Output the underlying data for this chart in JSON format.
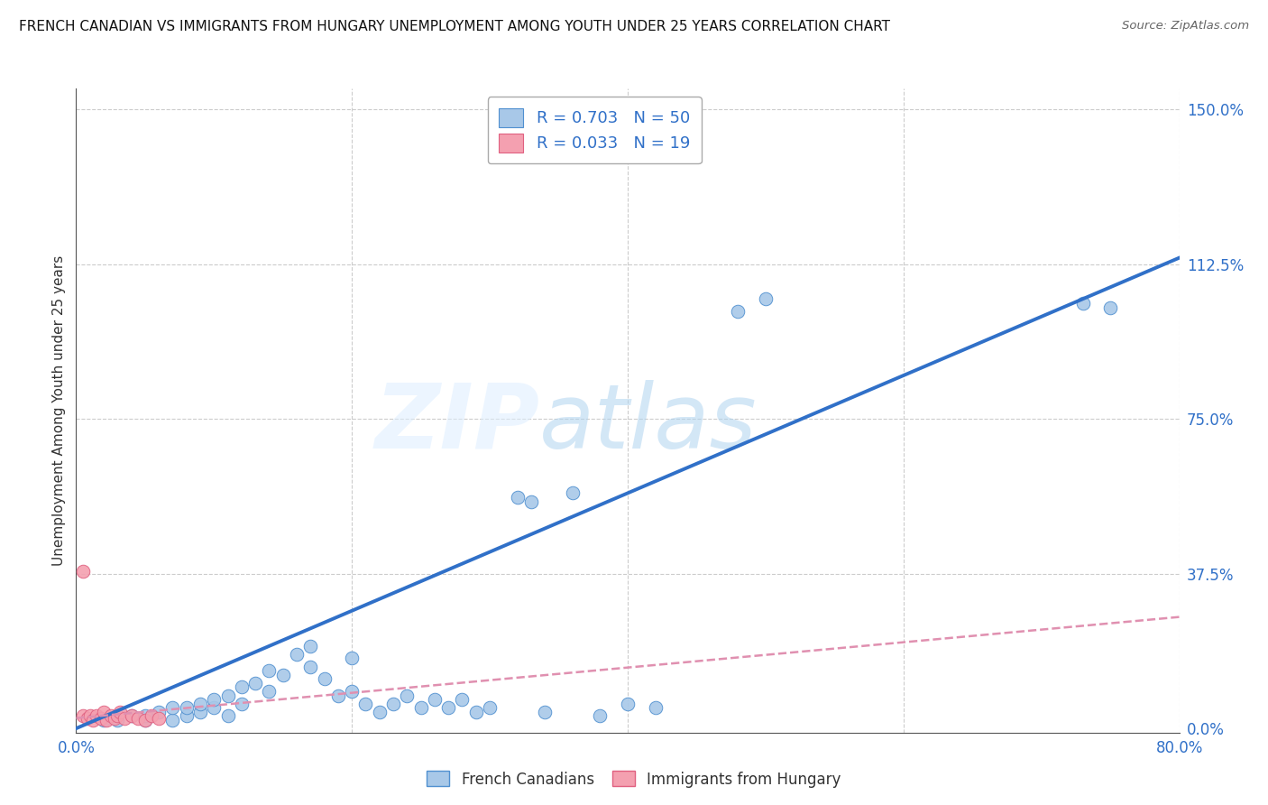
{
  "title": "FRENCH CANADIAN VS IMMIGRANTS FROM HUNGARY UNEMPLOYMENT AMONG YOUTH UNDER 25 YEARS CORRELATION CHART",
  "source": "Source: ZipAtlas.com",
  "ylabel": "Unemployment Among Youth under 25 years",
  "ylabel_ticks": [
    "0.0%",
    "37.5%",
    "75.0%",
    "112.5%",
    "150.0%"
  ],
  "ylabel_tick_vals": [
    0.0,
    0.375,
    0.75,
    1.125,
    1.5
  ],
  "xlabel_tick_vals": [
    0.0,
    0.8
  ],
  "xlabel_ticks": [
    "0.0%",
    "80.0%"
  ],
  "xmin": 0.0,
  "xmax": 0.8,
  "ymin": -0.01,
  "ymax": 1.55,
  "legend_label1": "French Canadians",
  "legend_label2": "Immigrants from Hungary",
  "R1": "0.703",
  "N1": "50",
  "R2": "0.033",
  "N2": "19",
  "color_blue": "#a8c8e8",
  "color_pink": "#f4a0b0",
  "edge_blue": "#5090d0",
  "edge_pink": "#e06080",
  "line_blue": "#3070c8",
  "line_pink": "#e090b0",
  "watermark_zip": "ZIP",
  "watermark_atlas": "atlas",
  "blue_scatter_x": [
    0.02,
    0.03,
    0.04,
    0.05,
    0.05,
    0.06,
    0.07,
    0.07,
    0.08,
    0.08,
    0.09,
    0.09,
    0.1,
    0.1,
    0.11,
    0.11,
    0.12,
    0.12,
    0.13,
    0.14,
    0.14,
    0.15,
    0.16,
    0.17,
    0.17,
    0.18,
    0.19,
    0.2,
    0.2,
    0.21,
    0.22,
    0.23,
    0.24,
    0.25,
    0.26,
    0.27,
    0.28,
    0.29,
    0.3,
    0.32,
    0.33,
    0.34,
    0.36,
    0.38,
    0.4,
    0.42,
    0.48,
    0.5,
    0.73,
    0.75
  ],
  "blue_scatter_y": [
    0.02,
    0.02,
    0.03,
    0.02,
    0.03,
    0.04,
    0.02,
    0.05,
    0.03,
    0.05,
    0.04,
    0.06,
    0.05,
    0.07,
    0.03,
    0.08,
    0.06,
    0.1,
    0.11,
    0.09,
    0.14,
    0.13,
    0.18,
    0.15,
    0.2,
    0.12,
    0.08,
    0.09,
    0.17,
    0.06,
    0.04,
    0.06,
    0.08,
    0.05,
    0.07,
    0.05,
    0.07,
    0.04,
    0.05,
    0.56,
    0.55,
    0.04,
    0.57,
    0.03,
    0.06,
    0.05,
    1.01,
    1.04,
    1.03,
    1.02
  ],
  "pink_scatter_x": [
    0.005,
    0.008,
    0.01,
    0.012,
    0.015,
    0.018,
    0.02,
    0.022,
    0.025,
    0.028,
    0.03,
    0.032,
    0.035,
    0.04,
    0.045,
    0.05,
    0.055,
    0.06,
    0.005
  ],
  "pink_scatter_y": [
    0.03,
    0.025,
    0.03,
    0.02,
    0.03,
    0.025,
    0.04,
    0.02,
    0.03,
    0.025,
    0.03,
    0.04,
    0.025,
    0.03,
    0.025,
    0.02,
    0.03,
    0.025,
    0.38
  ],
  "blue_line_x": [
    0.0,
    0.8
  ],
  "blue_line_y": [
    0.0,
    1.14
  ],
  "pink_line_x": [
    0.0,
    0.8
  ],
  "pink_line_y": [
    0.025,
    0.27
  ],
  "grid_yticks": [
    0.375,
    0.75,
    1.125,
    1.5
  ],
  "grid_xticks": [
    0.2,
    0.4,
    0.6,
    0.8
  ]
}
